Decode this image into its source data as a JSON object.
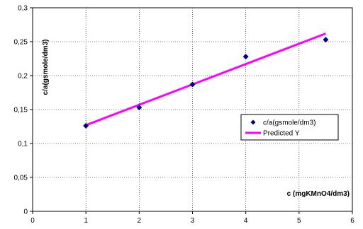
{
  "chart_data": {
    "type": "scatter",
    "xlabel": "c (mgKMnO4/dm3)",
    "ylabel": "c/a(gsmole/dm3)",
    "xlim": [
      0,
      6
    ],
    "ylim": [
      0,
      0.3
    ],
    "xticks": [
      0,
      1,
      2,
      3,
      4,
      5,
      6
    ],
    "xtick_labels": [
      "0",
      "1",
      "2",
      "3",
      "4",
      "5",
      "6"
    ],
    "yticks": [
      0,
      0.05,
      0.1,
      0.15,
      0.2,
      0.25,
      0.3
    ],
    "ytick_labels": [
      "0",
      "0,05",
      "0,1",
      "0,15",
      "0,2",
      "0,25",
      "0,3"
    ],
    "grid": true,
    "legend_position": "right",
    "series": [
      {
        "name": "c/a(gsmole/dm3)",
        "kind": "scatter",
        "marker": "diamond",
        "color": "#000080",
        "x": [
          1,
          2,
          3,
          4,
          5.5
        ],
        "y": [
          0.126,
          0.153,
          0.187,
          0.228,
          0.253
        ]
      },
      {
        "name": "Predicted Y",
        "kind": "line",
        "color": "#ff00ff",
        "x": [
          1,
          5.5
        ],
        "y": [
          0.127,
          0.262
        ]
      }
    ]
  }
}
